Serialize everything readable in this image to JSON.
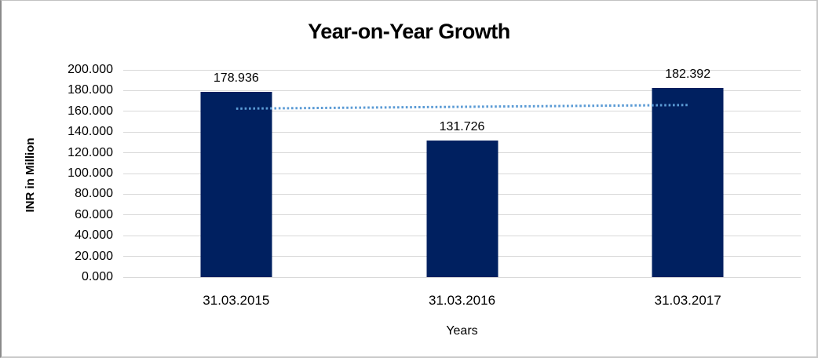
{
  "chart_data": {
    "type": "bar",
    "title": "Year-on-Year Growth",
    "xlabel": "Years",
    "ylabel": "INR in Million",
    "categories": [
      "31.03.2015",
      "31.03.2016",
      "31.03.2017"
    ],
    "values": [
      178.936,
      131.726,
      182.392
    ],
    "value_labels": [
      "178.936",
      "131.726",
      "182.392"
    ],
    "y_ticks": [
      "200.000",
      "180.000",
      "160.000",
      "140.000",
      "120.000",
      "100.000",
      "80.000",
      "60.000",
      "40.000",
      "20.000",
      "0.000"
    ],
    "ylim": [
      0,
      200
    ],
    "grid": true,
    "legend": false,
    "colors": {
      "bar": "#002060",
      "trendline": "#5b9bd5",
      "gridline": "#d9d9d9",
      "text": "#000000"
    },
    "trendline": {
      "type": "linear",
      "style": "dotted",
      "start_value": 162.6,
      "end_value": 166.1
    }
  }
}
